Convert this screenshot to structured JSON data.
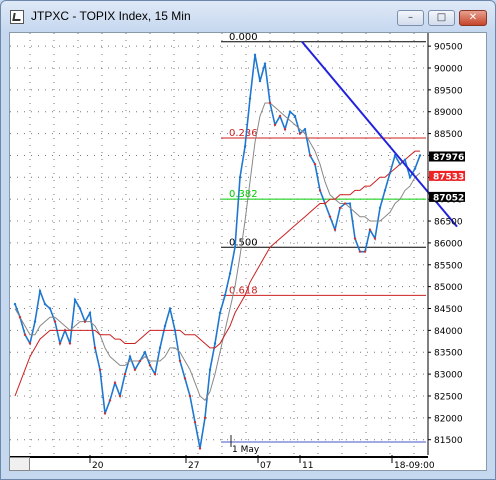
{
  "window": {
    "title": "JTPXC - TOPIX Index, 15 Min",
    "minimize_glyph": "–",
    "maximize_glyph": "□",
    "close_glyph": "✕"
  },
  "chart_data": {
    "type": "line",
    "title": "JTPXC - TOPIX Index, 15 Min",
    "y_ticks": [
      81500,
      82000,
      82500,
      83000,
      83500,
      84000,
      84500,
      85000,
      85500,
      86000,
      86500,
      87000,
      87500,
      88000,
      88500,
      89000,
      89500,
      90000,
      90500
    ],
    "y_tick_labels": [
      "81500",
      "82000",
      "82500",
      "83000",
      "83500",
      "84000",
      "84500",
      "85000",
      "85500",
      "86000",
      "86500",
      "87000",
      "87500",
      "88000",
      "88500",
      "89000",
      "89500",
      "90000",
      "90500"
    ],
    "x_tick_labels": [
      "20",
      "27",
      "07",
      "11",
      "18-09:00"
    ],
    "x_annotation": "1 May",
    "ylim": [
      81150,
      90800
    ],
    "grid": true,
    "fib_levels": [
      {
        "label": "0.000",
        "value": 90600,
        "color": "#000000"
      },
      {
        "label": "0.236",
        "value": 88400,
        "color": "#cc2222"
      },
      {
        "label": "0.382",
        "value": 87000,
        "color": "#00cc00"
      },
      {
        "label": "0.500",
        "value": 85900,
        "color": "#000000"
      },
      {
        "label": "0.618",
        "value": 84800,
        "color": "#cc2222"
      }
    ],
    "price_tags": [
      {
        "label": "87976",
        "value": 87976,
        "color": "#000000"
      },
      {
        "label": "87533",
        "value": 87533,
        "color": "#ee2222"
      },
      {
        "label": "87052",
        "value": 87052,
        "color": "#000000"
      }
    ],
    "trendline": {
      "start": [
        300,
        90600
      ],
      "end": [
        451,
        86600
      ],
      "color": "#2222dd"
    },
    "series": [
      {
        "values": [
          84600,
          84300,
          83900,
          83700,
          84200,
          84900,
          84600,
          84500,
          84200,
          83700,
          84000,
          83700,
          84700,
          84500,
          84200,
          84400,
          83600,
          83100,
          82100,
          82400,
          82800,
          82500,
          83000,
          83400,
          83100,
          83300,
          83500,
          83200,
          83000,
          83600,
          84100,
          84500,
          84000,
          83300,
          82900,
          82500,
          81900,
          81300,
          82000,
          83100,
          83700,
          84400,
          84800,
          85300,
          85900,
          87500,
          88200,
          89300,
          90300,
          89700,
          90100,
          89200,
          88700,
          88900,
          88600,
          89000,
          88900,
          88500,
          88600,
          88000,
          87800,
          87200,
          86900,
          86600,
          86300,
          86800,
          86900,
          86900,
          86100,
          85800,
          85800,
          86300,
          86100,
          86800,
          87200,
          87600,
          88000,
          87800,
          87900,
          87500,
          87700,
          88000
        ]
      },
      {
        "values": [
          84500,
          84300,
          84100,
          83900,
          83900,
          84100,
          84200,
          84300,
          84300,
          84200,
          84100,
          84000,
          84100,
          84200,
          84200,
          84200,
          84100,
          83900,
          83600,
          83400,
          83300,
          83200,
          83200,
          83300,
          83300,
          83300,
          83400,
          83300,
          83300,
          83300,
          83400,
          83600,
          83600,
          83500,
          83300,
          83100,
          82800,
          82500,
          82400,
          82600,
          83000,
          83500,
          84000,
          84500,
          85000,
          85700,
          86500,
          87400,
          88300,
          88900,
          89200,
          89200,
          89100,
          89000,
          88900,
          88800,
          88700,
          88600,
          88500,
          88300,
          88100,
          87800,
          87400,
          87100,
          87000,
          86900,
          86900,
          86800,
          86700,
          86600,
          86600,
          86500,
          86500,
          86500,
          86600,
          86700,
          86900,
          87000,
          87200,
          87300,
          87500,
          87600
        ]
      },
      {
        "values": [
          82500,
          82800,
          83100,
          83400,
          83600,
          83800,
          83900,
          84000,
          84000,
          84000,
          84000,
          84000,
          84000,
          84000,
          84000,
          84000,
          84000,
          83900,
          83900,
          83900,
          83800,
          83800,
          83700,
          83700,
          83700,
          83800,
          83900,
          84000,
          84000,
          84000,
          84000,
          84000,
          84000,
          84000,
          83900,
          83900,
          83900,
          83800,
          83700,
          83600,
          83600,
          83700,
          83900,
          84100,
          84400,
          84600,
          84800,
          85100,
          85300,
          85500,
          85700,
          85900,
          86000,
          86100,
          86200,
          86300,
          86400,
          86500,
          86600,
          86700,
          86800,
          86900,
          86900,
          87000,
          87000,
          87100,
          87100,
          87100,
          87200,
          87200,
          87300,
          87300,
          87400,
          87500,
          87500,
          87600,
          87700,
          87800,
          87900,
          88000,
          88100,
          88100
        ]
      }
    ]
  }
}
